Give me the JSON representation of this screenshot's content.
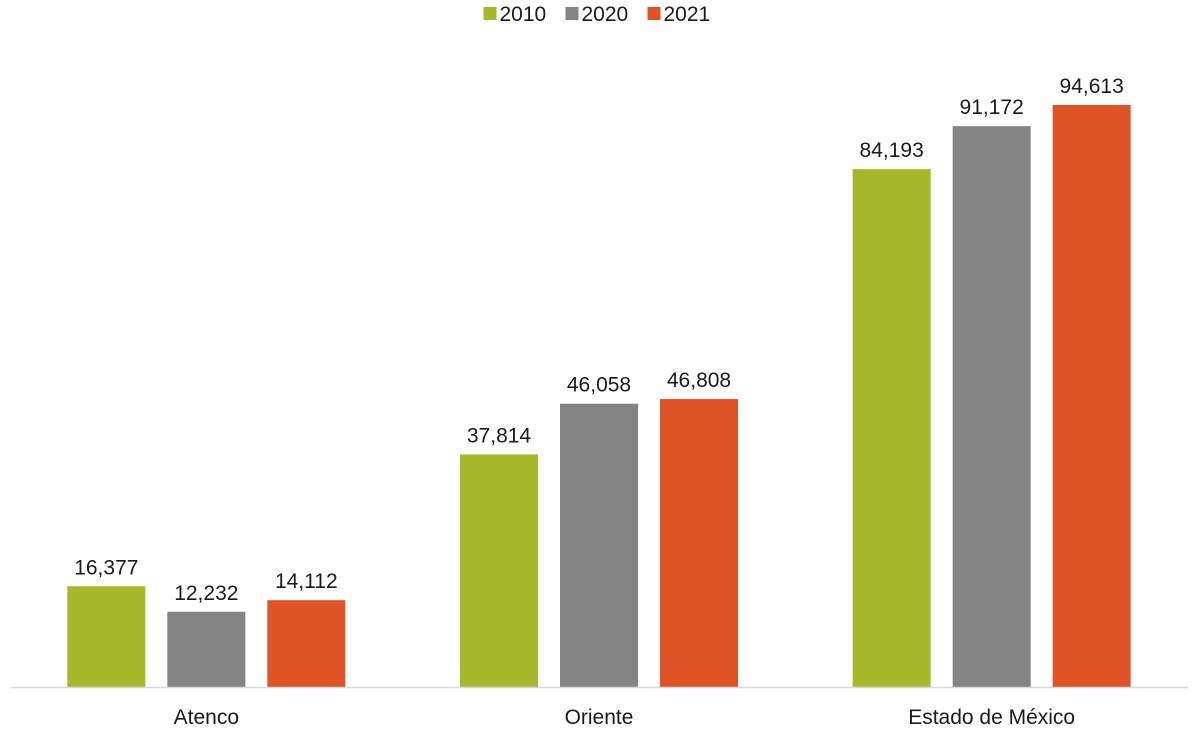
{
  "chart_data": {
    "type": "bar",
    "categories": [
      "Atenco",
      "Oriente",
      "Estado de México"
    ],
    "series": [
      {
        "name": "2010",
        "values": [
          16377,
          37814,
          84193
        ],
        "value_labels": [
          "16,377",
          "37,814",
          "84,193"
        ],
        "color": "#a6b92a"
      },
      {
        "name": "2020",
        "values": [
          12232,
          46058,
          91172
        ],
        "value_labels": [
          "12,232",
          "46,058",
          "91,172"
        ],
        "color": "#848484"
      },
      {
        "name": "2021",
        "values": [
          14112,
          46808,
          94613
        ],
        "value_labels": [
          "14,112",
          "46,808",
          "94,613"
        ],
        "color": "#e05327"
      }
    ],
    "title": "",
    "xlabel": "",
    "ylabel": "",
    "ylim": [
      0,
      100000
    ],
    "grid": false,
    "legend_position": "top-center",
    "axis_color": "#d9d9d9",
    "label_color": "#1a1a1a"
  }
}
